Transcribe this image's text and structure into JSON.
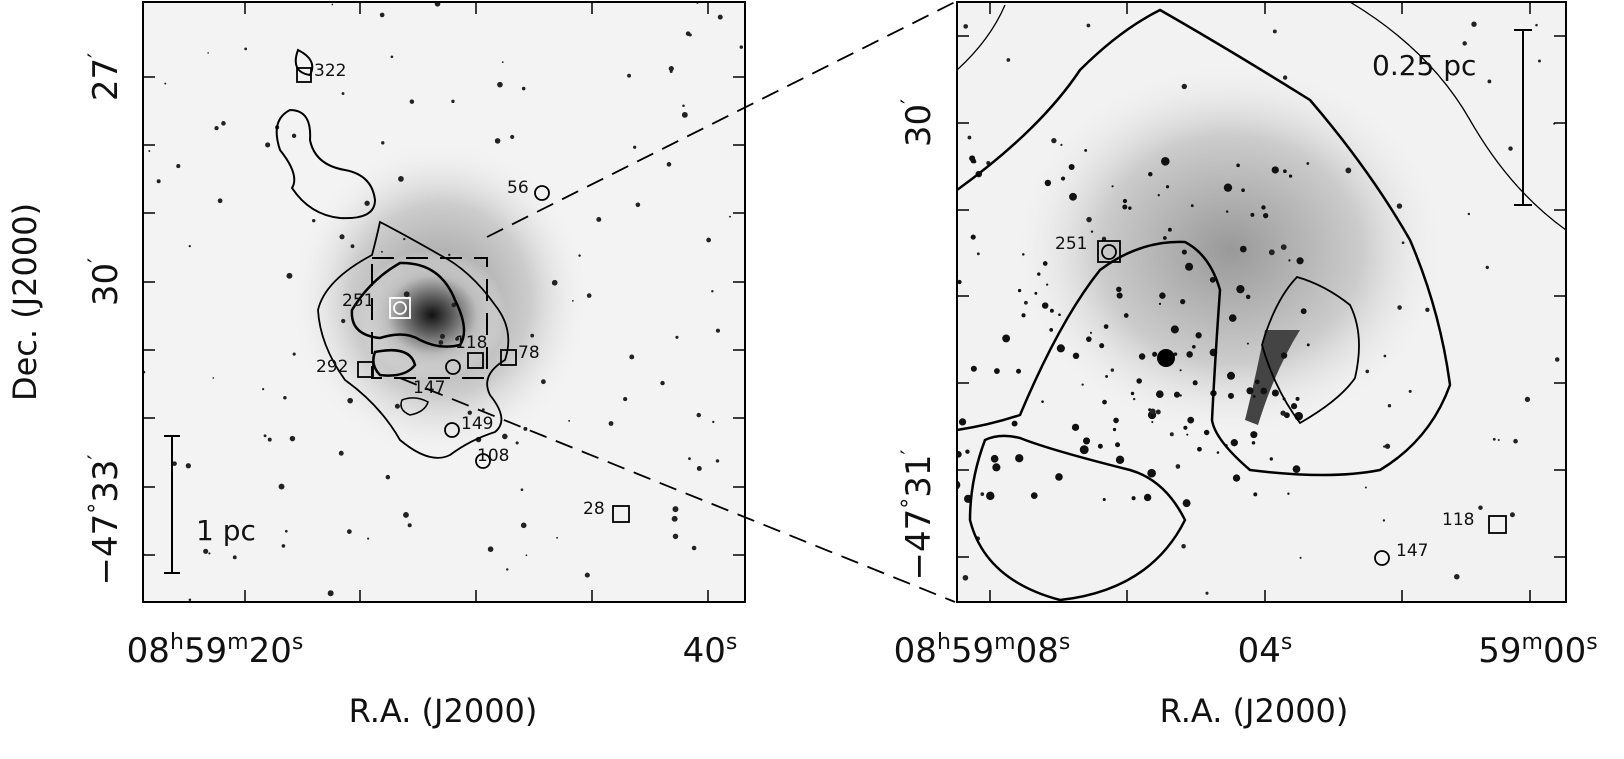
{
  "left_panel": {
    "x_ticks": [
      {
        "parts": [
          "08",
          "h",
          "59",
          "m",
          "20",
          "s"
        ]
      },
      {
        "parts": [
          "40",
          "s"
        ]
      }
    ],
    "y_ticks": [
      {
        "parts": [
          "27",
          "′"
        ]
      },
      {
        "parts": [
          "30",
          "′"
        ]
      },
      {
        "parts": [
          "−47",
          "°",
          "33",
          "′"
        ]
      }
    ],
    "x_label": "R.A. (J2000)",
    "y_label": "Dec. (J2000)",
    "scale_bar": "1 pc",
    "sources": [
      "322",
      "56",
      "251",
      "118",
      "78",
      "292",
      "147",
      "149",
      "108",
      "28"
    ]
  },
  "right_panel": {
    "x_ticks": [
      {
        "parts": [
          "08",
          "h",
          "59",
          "m",
          "08",
          "s"
        ]
      },
      {
        "parts": [
          "04",
          "s"
        ]
      },
      {
        "parts": [
          "59",
          "m",
          "00",
          "s"
        ]
      }
    ],
    "y_ticks": [
      {
        "parts": [
          "30",
          "′"
        ]
      },
      {
        "parts": [
          "−47",
          "°",
          "31",
          "′"
        ]
      }
    ],
    "x_label": "R.A. (J2000)",
    "scale_bar": "0.25 pc",
    "sources": [
      "251",
      "118",
      "147"
    ]
  }
}
